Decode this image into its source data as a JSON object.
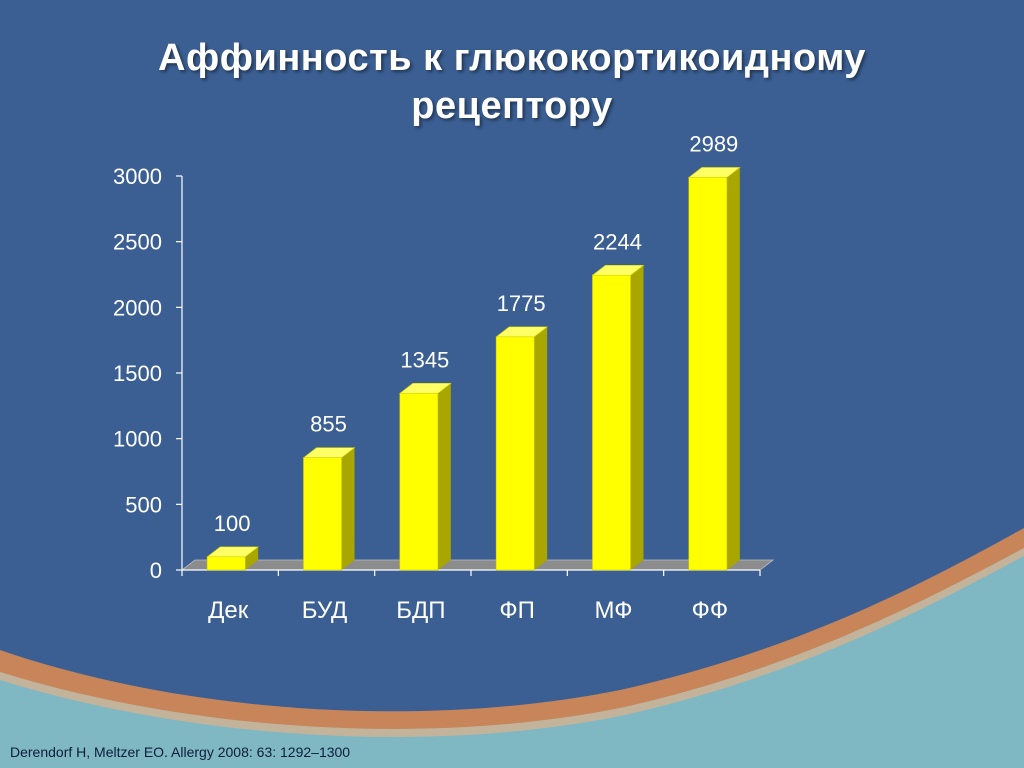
{
  "slide": {
    "title_line1": "Аффинность к глюкокортикоидному",
    "title_line2": "рецептору",
    "citation": "Derendorf H, Meltzer EO. Allergy 2008: 63: 1292–1300"
  },
  "colors": {
    "background": "#3b5f93",
    "bar_front": "#ffff00",
    "bar_side": "#a9a600",
    "bar_top": "#ffff66",
    "accent_stripe": "#c8855a",
    "bottom_band": "#7fb8c2"
  },
  "chart_data": {
    "type": "bar",
    "categories": [
      "Дек",
      "БУД",
      "БДП",
      "ФП",
      "МФ",
      "ФФ"
    ],
    "values": [
      100,
      855,
      1345,
      1775,
      2244,
      2989
    ],
    "data_labels": [
      "100",
      "855",
      "1345",
      "1775",
      "2244",
      "2989"
    ],
    "ylim": [
      0,
      3000
    ],
    "yticks": [
      0,
      500,
      1000,
      1500,
      2000,
      2500,
      3000
    ],
    "ytick_labels": [
      "0",
      "500",
      "1000",
      "1500",
      "2000",
      "2500",
      "3000"
    ],
    "style": "3d",
    "grid": false,
    "legend": "none"
  }
}
